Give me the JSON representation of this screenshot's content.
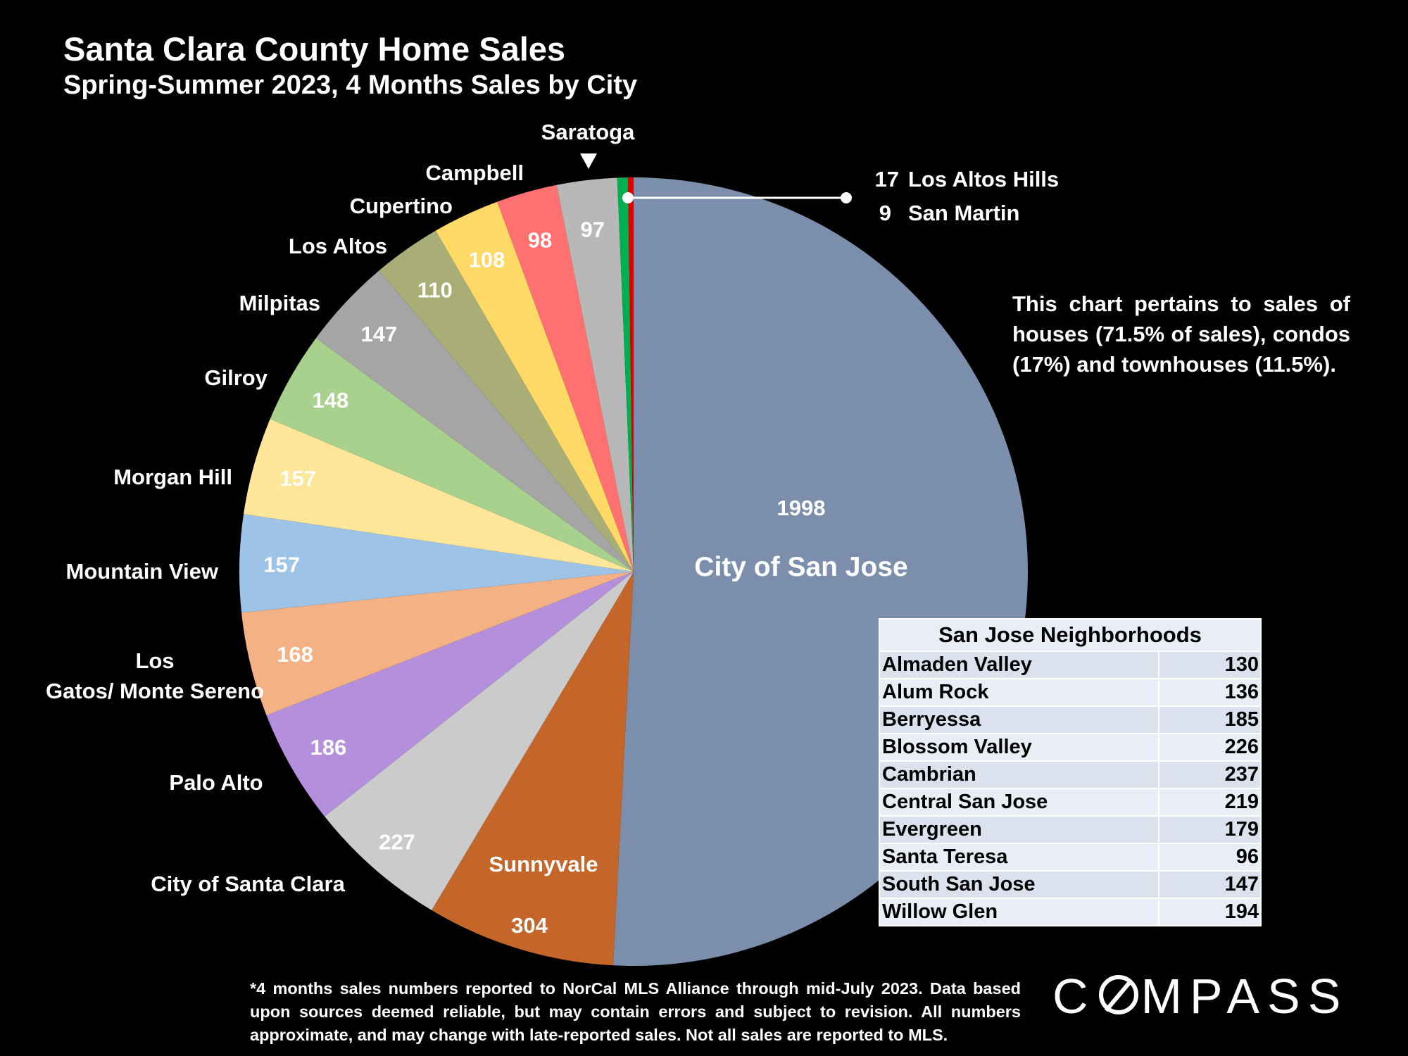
{
  "header": {
    "title": "Santa Clara County Home Sales",
    "subtitle": "Spring-Summer 2023, 4 Months Sales by City"
  },
  "chart_data": {
    "type": "pie",
    "title": "Santa Clara County Home Sales",
    "subtitle": "Spring-Summer 2023, 4 Months Sales by City",
    "slices": [
      {
        "label": "City of San Jose",
        "value": 1998,
        "color": "#7b8fac"
      },
      {
        "label": "Sunnyvale",
        "value": 304,
        "color": "#c4652a"
      },
      {
        "label": "City of Santa Clara",
        "value": 227,
        "color": "#cbcbcb"
      },
      {
        "label": "Palo Alto",
        "value": 186,
        "color": "#b48fdc"
      },
      {
        "label": "Los Gatos/ Monte Sereno",
        "value": 168,
        "color": "#f4b183"
      },
      {
        "label": "Mountain View",
        "value": 157,
        "color": "#9dc3e6"
      },
      {
        "label": "Morgan Hill",
        "value": 157,
        "color": "#ffe699"
      },
      {
        "label": "Gilroy",
        "value": 148,
        "color": "#a9d18e"
      },
      {
        "label": "Milpitas",
        "value": 147,
        "color": "#a5a5a5"
      },
      {
        "label": "Los Altos",
        "value": 110,
        "color": "#a9ad76"
      },
      {
        "label": "Cupertino",
        "value": 108,
        "color": "#ffd966"
      },
      {
        "label": "Campbell",
        "value": 98,
        "color": "#ff7171"
      },
      {
        "label": "Saratoga",
        "value": 97,
        "color": "#b8b8b8"
      },
      {
        "label": "Los Altos Hills",
        "value": 17,
        "color": "#00b050"
      },
      {
        "label": "San Martin",
        "value": 9,
        "color": "#e00000"
      }
    ]
  },
  "callout": {
    "line1_value": "17",
    "line1_label": "Los Altos Hills",
    "line2_value": "9",
    "line2_label": "San Martin"
  },
  "note": "This chart pertains to sales of houses (71.5% of sales), condos (17%) and townhouses (11.5%).",
  "neighborhoods": {
    "title": "San Jose Neighborhoods",
    "rows": [
      {
        "name": "Almaden Valley",
        "value": "130"
      },
      {
        "name": "Alum Rock",
        "value": "136"
      },
      {
        "name": "Berryessa",
        "value": "185"
      },
      {
        "name": "Blossom Valley",
        "value": "226"
      },
      {
        "name": "Cambrian",
        "value": "237"
      },
      {
        "name": "Central San Jose",
        "value": "219"
      },
      {
        "name": "Evergreen",
        "value": "179"
      },
      {
        "name": "Santa Teresa",
        "value": "96"
      },
      {
        "name": "South San Jose",
        "value": "147"
      },
      {
        "name": "Willow Glen",
        "value": "194"
      }
    ]
  },
  "footnote": "*4 months sales numbers reported to NorCal MLS Alliance through mid-July 2023. Data based upon sources deemed reliable, but may contain errors and subject to revision. All numbers approximate, and may change with late-reported sales. Not all sales are reported to MLS.",
  "logo": {
    "before": "C",
    "after": "MPASS",
    "full": "COMPASS"
  }
}
